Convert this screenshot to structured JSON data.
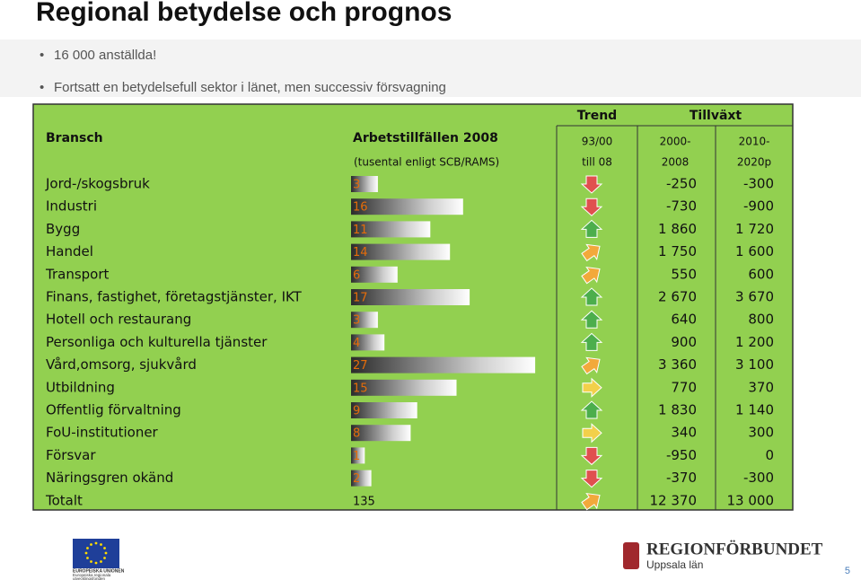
{
  "title": "Regional betydelse och prognos",
  "bullets": [
    "16 000 anställda!",
    "Fortsatt en betydelsefull sektor i länet, men successiv försvagning"
  ],
  "table": {
    "header": {
      "trend": "Trend",
      "growth": "Tillväxt",
      "sector": "Bransch",
      "jobs": "Arbetstillfällen 2008",
      "jobs_note": "(tusental enligt SCB/RAMS)",
      "trend_period": [
        "93/00",
        "till 08"
      ],
      "growth_period_1": [
        "2000-",
        "2008"
      ],
      "growth_period_2": [
        "2010-",
        "2020p"
      ]
    },
    "rows": [
      {
        "name": "Jord-/skogsbruk",
        "jobs": 3,
        "trend": "down",
        "growth_1": "-250",
        "growth_2": "-300"
      },
      {
        "name": "Industri",
        "jobs": 16,
        "trend": "down",
        "growth_1": "-730",
        "growth_2": "-900"
      },
      {
        "name": "Bygg",
        "jobs": 11,
        "trend": "up",
        "growth_1": "1 860",
        "growth_2": "1 720"
      },
      {
        "name": "Handel",
        "jobs": 14,
        "trend": "diagonal",
        "growth_1": "1 750",
        "growth_2": "1 600"
      },
      {
        "name": "Transport",
        "jobs": 6,
        "trend": "diagonal",
        "growth_1": "550",
        "growth_2": "600"
      },
      {
        "name": "Finans, fastighet, företagstjänster, IKT",
        "jobs": 17,
        "trend": "up",
        "growth_1": "2 670",
        "growth_2": "3 670"
      },
      {
        "name": "Hotell och restaurang",
        "jobs": 3,
        "trend": "up",
        "growth_1": "640",
        "growth_2": "800"
      },
      {
        "name": "Personliga och kulturella tjänster",
        "jobs": 4,
        "trend": "up",
        "growth_1": "900",
        "growth_2": "1 200"
      },
      {
        "name": "Vård,omsorg, sjukvård",
        "jobs": 27,
        "trend": "diagonal",
        "growth_1": "3 360",
        "growth_2": "3 100"
      },
      {
        "name": "Utbildning",
        "jobs": 15,
        "trend": "right",
        "growth_1": "770",
        "growth_2": "370"
      },
      {
        "name": "Offentlig förvaltning",
        "jobs": 9,
        "trend": "up",
        "growth_1": "1 830",
        "growth_2": "1 140"
      },
      {
        "name": "FoU-institutioner",
        "jobs": 8,
        "trend": "right",
        "growth_1": "340",
        "growth_2": "300"
      },
      {
        "name": "Försvar",
        "jobs": 1,
        "trend": "down",
        "growth_1": "-950",
        "growth_2": "0"
      },
      {
        "name": "Näringsgren okänd",
        "jobs": 2,
        "trend": "down",
        "growth_1": "-370",
        "growth_2": "-300"
      }
    ],
    "total": {
      "name": "Totalt",
      "jobs": 135,
      "trend": "diagonal",
      "growth_1": "12 370",
      "growth_2": "13 000"
    }
  },
  "footer": {
    "eu_1": "EUROPEISKA UNIONEN",
    "eu_2": "Europeiska regionala",
    "eu_3": "utvecklingsfonden",
    "org": "REGIONFÖRBUNDET",
    "org_sub": "Uppsala län",
    "page": "5"
  }
}
